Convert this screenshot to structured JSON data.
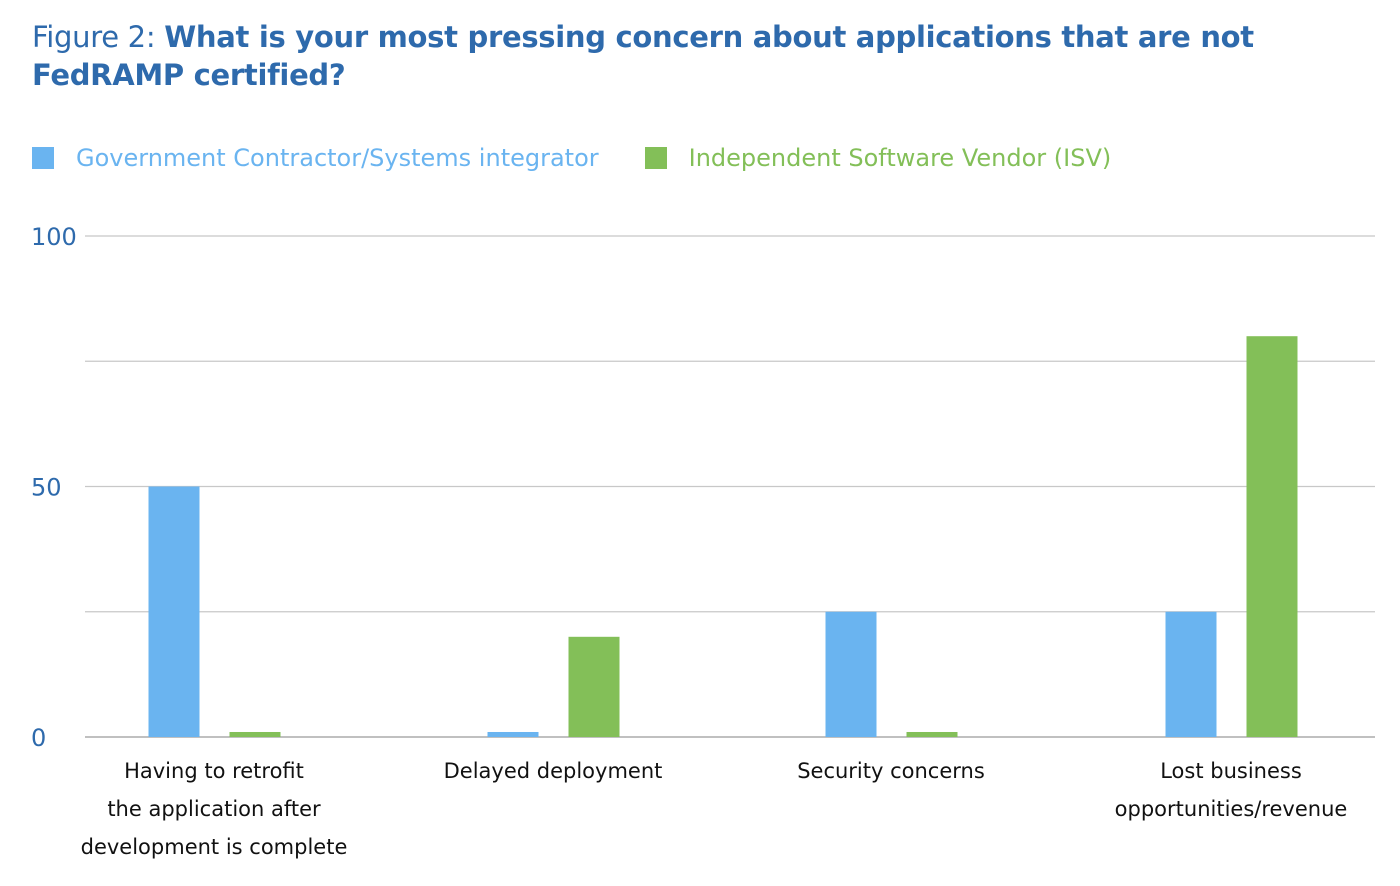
{
  "figure": {
    "prefix": "Figure 2: ",
    "title": "What is your most pressing concern about applications that are not FedRAMP certified?"
  },
  "colors": {
    "title": "#2e6aac",
    "axis_text": "#2e6aac",
    "category_text": "#111111",
    "gridline": "#c8c8c8"
  },
  "chart_data": {
    "type": "bar",
    "categories": [
      [
        "Having to retrofit",
        "the application after",
        "development is complete"
      ],
      [
        "Delayed deployment"
      ],
      [
        "Security concerns"
      ],
      [
        "Lost business",
        "opportunities/revenue"
      ]
    ],
    "series": [
      {
        "name": "Government Contractor/Systems integrator",
        "color": "#6ab4f0",
        "values": [
          50,
          1,
          25,
          25
        ]
      },
      {
        "name": "Independent Software Vendor (ISV)",
        "color": "#83bf58",
        "values": [
          1,
          20,
          1,
          80
        ]
      }
    ],
    "ylim": [
      0,
      100
    ],
    "yticks": [
      0,
      25,
      50,
      75,
      100
    ],
    "ytick_labels": [
      "0",
      "",
      "50",
      "",
      "100"
    ],
    "grid": true,
    "legend": "top-left",
    "xlabel": "",
    "ylabel": ""
  }
}
